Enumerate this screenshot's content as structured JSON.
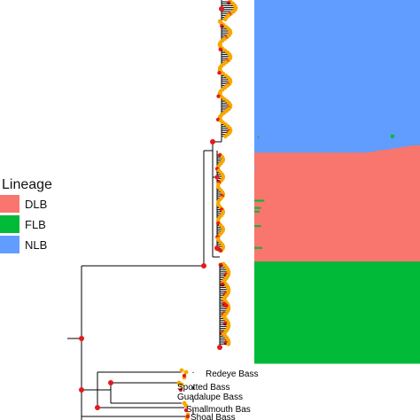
{
  "chart_data": {
    "type": "bar",
    "panels": [
      "phylogenetic tree",
      "stacked ancestry bar plot"
    ],
    "legend": {
      "title": "Lineage",
      "placement": "left",
      "entries": [
        {
          "name": "DLB",
          "color": "#F8766D"
        },
        {
          "name": "FLB",
          "color": "#00BA38"
        },
        {
          "name": "NLB",
          "color": "#619CFF"
        }
      ]
    },
    "tree_tips": [
      "Redeye Bass",
      "Spotted Bass",
      "Guadalupe Bass",
      "Smallmouth Bas",
      "Shoal Bass"
    ],
    "ancestry_blocks": [
      {
        "lineage": "NLB",
        "fraction": 0.42
      },
      {
        "lineage": "DLB",
        "fraction": 0.3
      },
      {
        "lineage": "FLB",
        "fraction": 0.28
      }
    ],
    "admixed_rows": [
      {
        "y": 0.36,
        "NLB": 0.22,
        "DLB": 0.78,
        "FLB": 0.0
      },
      {
        "y": 0.37,
        "NLB": 0.1,
        "DLB": 0.9,
        "FLB": 0.0
      },
      {
        "y": 0.375,
        "NLB": 0.05,
        "DLB": 0.93,
        "FLB": 0.02
      },
      {
        "y": 0.46,
        "NLB": 0.02,
        "DLB": 0.98,
        "FLB": 0.0
      },
      {
        "y": 0.55,
        "NLB": 0.0,
        "DLB": 0.85,
        "FLB": 0.15
      },
      {
        "y": 0.57,
        "NLB": 0.0,
        "DLB": 0.9,
        "FLB": 0.1
      },
      {
        "y": 0.58,
        "NLB": 0.0,
        "DLB": 0.92,
        "FLB": 0.08
      },
      {
        "y": 0.62,
        "NLB": 0.0,
        "DLB": 0.9,
        "FLB": 0.1
      },
      {
        "y": 0.68,
        "NLB": 0.0,
        "DLB": 0.88,
        "FLB": 0.12
      },
      {
        "y": 0.73,
        "NLB": 0.0,
        "DLB": 0.92,
        "FLB": 0.08
      }
    ],
    "colors": {
      "branch": "#000000",
      "node_support": "#E41A1C",
      "tip_point": "#F5A800"
    }
  }
}
